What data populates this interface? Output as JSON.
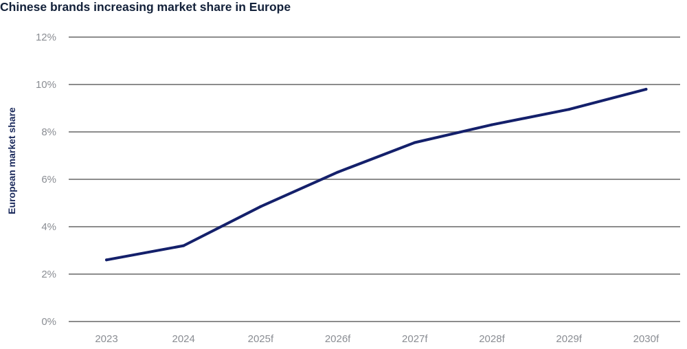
{
  "chart_data": {
    "type": "line",
    "title": "Chinese brands increasing market share in Europe",
    "xlabel": "",
    "ylabel": "European market share",
    "categories": [
      "2023",
      "2024",
      "2025f",
      "2026f",
      "2027f",
      "2028f",
      "2029f",
      "2030f"
    ],
    "series": [
      {
        "values": [
          2.6,
          3.2,
          4.85,
          6.3,
          7.55,
          8.3,
          8.95,
          9.8
        ]
      }
    ],
    "ylim": [
      0,
      12
    ],
    "yticks": [
      0,
      2,
      4,
      6,
      8,
      10,
      12
    ],
    "ytick_labels": [
      "0%",
      "2%",
      "4%",
      "6%",
      "8%",
      "10%",
      "12%"
    ],
    "grid": true,
    "legend": "none",
    "colors": {
      "line": "#14206b",
      "grid": "#8c8c8c",
      "tick_text": "#8a8d93",
      "ylabel": "#1b2a5c"
    }
  }
}
